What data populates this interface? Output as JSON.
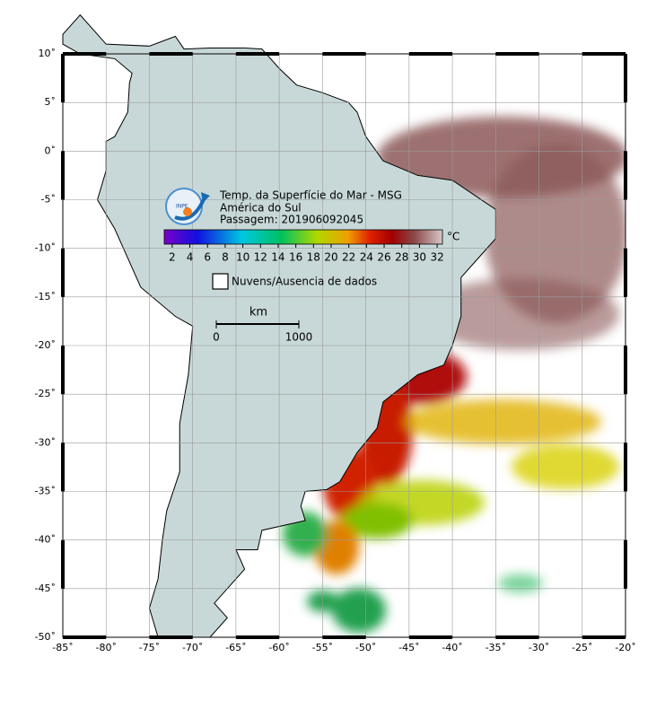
{
  "header": {
    "title": "Temp. da Superfície do Mar - MSG",
    "region": "América do Sul",
    "pass": "Passagem: 201906092045"
  },
  "colorbar": {
    "unit": "°C",
    "range": [
      1.1,
      32.6
    ],
    "ticks": [
      2,
      4,
      6,
      8,
      10,
      12,
      14,
      16,
      18,
      20,
      22,
      24,
      26,
      28,
      30,
      32
    ]
  },
  "legend": {
    "clouds": "Nuvens/Ausencia de dados"
  },
  "scale_bar": {
    "unit": "km",
    "ticks": [
      0,
      1000
    ]
  },
  "axes": {
    "xlim": [
      -85,
      -20
    ],
    "ylim": [
      -50,
      10
    ],
    "xticks": [
      {
        "value": -85,
        "label": "-85˚"
      },
      {
        "value": -80,
        "label": "-80˚"
      },
      {
        "value": -75,
        "label": "-75˚"
      },
      {
        "value": -70,
        "label": "-70˚"
      },
      {
        "value": -65,
        "label": "-65˚"
      },
      {
        "value": -60,
        "label": "-60˚"
      },
      {
        "value": -55,
        "label": "-55˚"
      },
      {
        "value": -50,
        "label": "-50˚"
      },
      {
        "value": -45,
        "label": "-45˚"
      },
      {
        "value": -40,
        "label": "-40˚"
      },
      {
        "value": -35,
        "label": "-35˚"
      },
      {
        "value": -30,
        "label": "-30˚"
      },
      {
        "value": -25,
        "label": "-25˚"
      },
      {
        "value": -20,
        "label": "-20˚"
      }
    ],
    "yticks": [
      {
        "value": 10,
        "label": "10˚"
      },
      {
        "value": 5,
        "label": "5˚"
      },
      {
        "value": 0,
        "label": "0˚"
      },
      {
        "value": -5,
        "label": "-5˚"
      },
      {
        "value": -10,
        "label": "-10˚"
      },
      {
        "value": -15,
        "label": "-15˚"
      },
      {
        "value": -20,
        "label": "-20˚"
      },
      {
        "value": -25,
        "label": "-25˚"
      },
      {
        "value": -30,
        "label": "-30˚"
      },
      {
        "value": -35,
        "label": "-35˚"
      },
      {
        "value": -40,
        "label": "-40˚"
      },
      {
        "value": -45,
        "label": "-45˚"
      },
      {
        "value": -50,
        "label": "-50˚"
      }
    ]
  }
}
